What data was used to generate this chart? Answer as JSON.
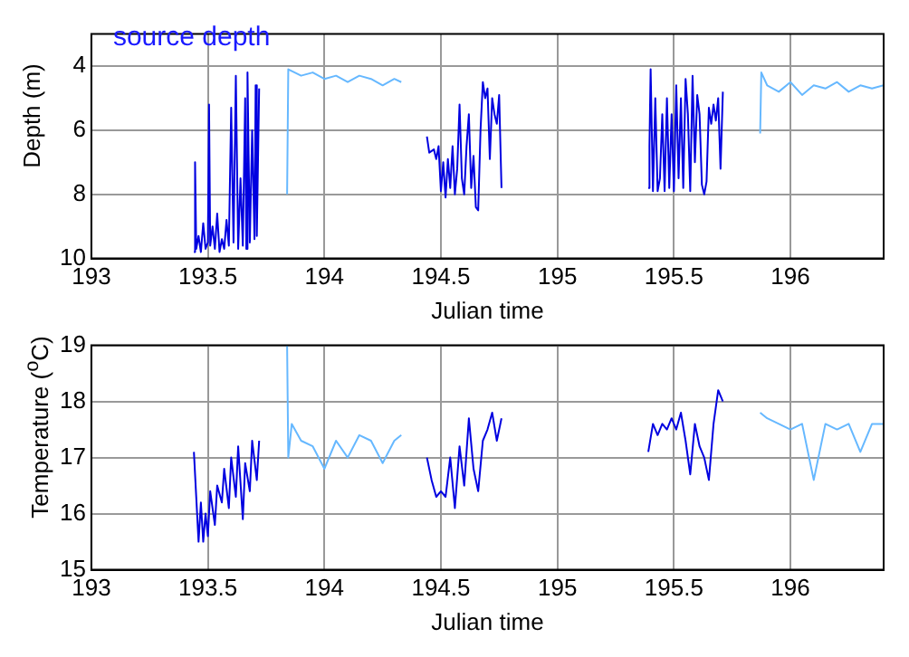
{
  "chart_data": [
    {
      "type": "line",
      "title": "source depth",
      "xlabel": "Julian time",
      "ylabel": "Depth (m)",
      "xlim": [
        193,
        196.4
      ],
      "xticks": [
        193,
        193.5,
        194,
        194.5,
        195,
        195.5,
        196
      ],
      "ylim": [
        10,
        3
      ],
      "yticks": [
        4,
        6,
        8,
        10
      ],
      "grid": true,
      "series": [
        {
          "color": "#0000e0",
          "x": [
            193.44,
            193.445,
            193.45,
            193.46,
            193.47,
            193.48,
            193.49,
            193.5,
            193.505,
            193.51,
            193.52,
            193.53,
            193.54,
            193.55,
            193.56,
            193.57,
            193.58,
            193.59,
            193.6,
            193.61,
            193.62,
            193.63,
            193.64,
            193.65,
            193.66,
            193.665,
            193.67,
            193.68,
            193.69,
            193.7,
            193.705,
            193.71,
            193.72
          ],
          "values": [
            9.8,
            7.0,
            9.7,
            9.3,
            9.8,
            8.9,
            9.7,
            9.5,
            5.2,
            9.6,
            9.0,
            9.7,
            8.6,
            9.8,
            9.4,
            9.7,
            8.8,
            9.6,
            5.3,
            9.5,
            4.3,
            9.7,
            7.5,
            9.6,
            5.0,
            9.7,
            4.2,
            9.5,
            6.0,
            9.4,
            4.6,
            9.3,
            4.7
          ]
        },
        {
          "color": "#66b8ff",
          "x": [
            193.84,
            193.845,
            193.9,
            193.95,
            194.0,
            194.05,
            194.1,
            194.15,
            194.2,
            194.25,
            194.3,
            194.33
          ],
          "values": [
            8.0,
            4.1,
            4.3,
            4.2,
            4.4,
            4.3,
            4.5,
            4.3,
            4.4,
            4.6,
            4.4,
            4.5
          ]
        },
        {
          "color": "#0000e0",
          "x": [
            194.44,
            194.45,
            194.47,
            194.48,
            194.49,
            194.5,
            194.51,
            194.52,
            194.53,
            194.54,
            194.55,
            194.56,
            194.57,
            194.58,
            194.59,
            194.6,
            194.61,
            194.62,
            194.63,
            194.64,
            194.65,
            194.66,
            194.67,
            194.68,
            194.69,
            194.7,
            194.71,
            194.72,
            194.73,
            194.74,
            194.75,
            194.76
          ],
          "values": [
            6.2,
            6.7,
            6.6,
            6.9,
            6.5,
            7.9,
            7.0,
            8.1,
            6.9,
            7.8,
            6.5,
            8.0,
            7.2,
            5.2,
            7.5,
            8.0,
            6.5,
            5.5,
            7.8,
            6.8,
            8.4,
            8.5,
            6.0,
            4.5,
            5.0,
            4.7,
            6.9,
            5.0,
            5.5,
            5.8,
            4.9,
            7.8
          ]
        },
        {
          "color": "#0000e0",
          "x": [
            195.39,
            195.395,
            195.4,
            195.41,
            195.42,
            195.43,
            195.44,
            195.45,
            195.46,
            195.47,
            195.48,
            195.49,
            195.5,
            195.51,
            195.52,
            195.53,
            195.54,
            195.55,
            195.56,
            195.57,
            195.58,
            195.59,
            195.6,
            195.61,
            195.62,
            195.63,
            195.64,
            195.65,
            195.66,
            195.67,
            195.68,
            195.69,
            195.7,
            195.71
          ],
          "values": [
            7.8,
            6.5,
            4.1,
            7.9,
            5.0,
            7.9,
            7.5,
            5.5,
            7.9,
            5.0,
            7.8,
            5.5,
            7.9,
            4.6,
            7.5,
            5.0,
            7.8,
            4.4,
            5.5,
            7.9,
            4.3,
            7.0,
            4.9,
            5.5,
            7.7,
            8.0,
            7.6,
            5.3,
            5.8,
            5.2,
            5.7,
            5.0,
            7.2,
            4.8
          ]
        },
        {
          "color": "#66b8ff",
          "x": [
            195.87,
            195.875,
            195.9,
            195.95,
            196.0,
            196.05,
            196.1,
            196.15,
            196.2,
            196.25,
            196.3,
            196.35,
            196.4
          ],
          "values": [
            6.1,
            4.2,
            4.6,
            4.8,
            4.5,
            4.9,
            4.6,
            4.7,
            4.5,
            4.8,
            4.6,
            4.7,
            4.6
          ]
        }
      ]
    },
    {
      "type": "line",
      "xlabel": "Julian time",
      "ylabel": "Temperature ($^{o}$C)",
      "xlim": [
        193,
        196.4
      ],
      "xticks": [
        193,
        193.5,
        194,
        194.5,
        195,
        195.5,
        196
      ],
      "ylim": [
        15,
        19
      ],
      "yticks": [
        15,
        16,
        17,
        18,
        19
      ],
      "grid": true,
      "series": [
        {
          "color": "#0000e0",
          "x": [
            193.44,
            193.45,
            193.46,
            193.47,
            193.48,
            193.49,
            193.5,
            193.51,
            193.53,
            193.54,
            193.56,
            193.57,
            193.59,
            193.6,
            193.62,
            193.63,
            193.65,
            193.66,
            193.68,
            193.69,
            193.71,
            193.72
          ],
          "values": [
            17.1,
            16.3,
            15.5,
            16.2,
            15.5,
            16.0,
            15.6,
            16.4,
            15.8,
            16.5,
            16.2,
            16.8,
            16.1,
            17.0,
            16.3,
            17.2,
            15.9,
            16.9,
            16.4,
            17.3,
            16.6,
            17.3
          ]
        },
        {
          "color": "#66b8ff",
          "x": [
            193.84,
            193.845,
            193.86,
            193.9,
            193.95,
            194.0,
            194.05,
            194.1,
            194.15,
            194.2,
            194.25,
            194.3,
            194.33
          ],
          "values": [
            19.0,
            17.0,
            17.6,
            17.3,
            17.2,
            16.8,
            17.3,
            17.0,
            17.4,
            17.3,
            16.9,
            17.3,
            17.4
          ]
        },
        {
          "color": "#0000e0",
          "x": [
            194.44,
            194.46,
            194.48,
            194.5,
            194.52,
            194.54,
            194.56,
            194.58,
            194.6,
            194.62,
            194.64,
            194.66,
            194.68,
            194.7,
            194.72,
            194.74,
            194.76
          ],
          "values": [
            17.0,
            16.6,
            16.3,
            16.4,
            16.3,
            17.0,
            16.1,
            17.2,
            16.5,
            17.7,
            16.8,
            16.4,
            17.3,
            17.5,
            17.8,
            17.3,
            17.7
          ]
        },
        {
          "color": "#0000e0",
          "x": [
            195.39,
            195.41,
            195.43,
            195.45,
            195.47,
            195.49,
            195.51,
            195.53,
            195.55,
            195.57,
            195.59,
            195.61,
            195.63,
            195.65,
            195.67,
            195.69,
            195.71
          ],
          "values": [
            17.1,
            17.6,
            17.4,
            17.6,
            17.5,
            17.7,
            17.5,
            17.8,
            17.3,
            16.7,
            17.6,
            17.2,
            17.0,
            16.6,
            17.6,
            18.2,
            18.0
          ]
        },
        {
          "color": "#66b8ff",
          "x": [
            195.87,
            195.9,
            195.95,
            196.0,
            196.05,
            196.1,
            196.15,
            196.2,
            196.25,
            196.3,
            196.35,
            196.4
          ],
          "values": [
            17.8,
            17.7,
            17.6,
            17.5,
            17.6,
            16.6,
            17.6,
            17.5,
            17.6,
            17.1,
            17.6,
            17.6
          ]
        }
      ]
    }
  ]
}
